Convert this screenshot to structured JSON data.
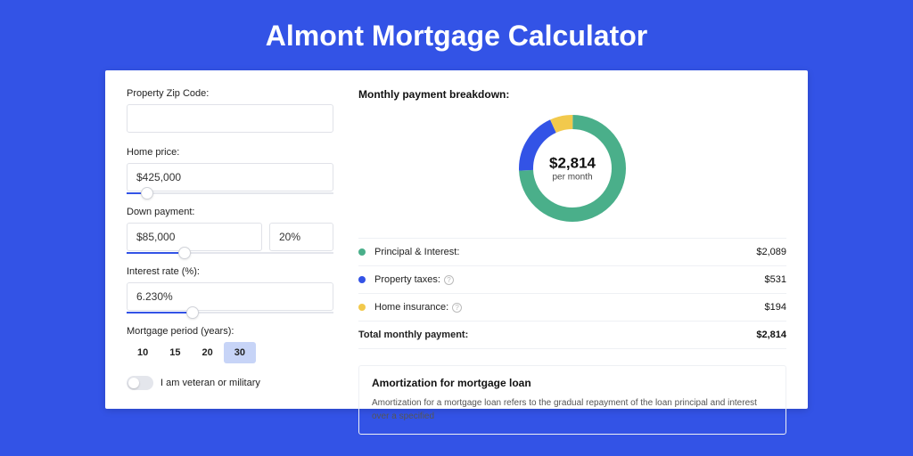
{
  "title": "Almont Mortgage Calculator",
  "colors": {
    "page_bg": "#3353e6",
    "card_bg": "#ffffff",
    "selected_bg": "#c7d4f7",
    "slider_fill": "#3353e6",
    "divider": "#eef0f4"
  },
  "form": {
    "zip": {
      "label": "Property Zip Code:",
      "value": ""
    },
    "price": {
      "label": "Home price:",
      "value": "$425,000",
      "slider_pct": 10
    },
    "down": {
      "label": "Down payment:",
      "value": "$85,000",
      "pct": "20%",
      "slider_pct": 28
    },
    "rate": {
      "label": "Interest rate (%):",
      "value": "6.230%",
      "slider_pct": 32
    },
    "period": {
      "label": "Mortgage period (years):",
      "options": [
        "10",
        "15",
        "20",
        "30"
      ],
      "selected_index": 3
    },
    "veteran_label": "I am veteran or military",
    "veteran_on": false
  },
  "breakdown": {
    "title": "Monthly payment breakdown:",
    "center_value": "$2,814",
    "center_sub": "per month",
    "donut": {
      "size": 120,
      "thickness": 16,
      "slices": [
        {
          "value": 2089,
          "color": "#4aaf8a"
        },
        {
          "value": 531,
          "color": "#3353e6"
        },
        {
          "value": 194,
          "color": "#f2c94c"
        }
      ]
    },
    "rows": [
      {
        "label": "Principal & Interest:",
        "value": "$2,089",
        "color": "#4aaf8a",
        "info": false
      },
      {
        "label": "Property taxes:",
        "value": "$531",
        "color": "#3353e6",
        "info": true
      },
      {
        "label": "Home insurance:",
        "value": "$194",
        "color": "#f2c94c",
        "info": true
      }
    ],
    "total": {
      "label": "Total monthly payment:",
      "value": "$2,814"
    }
  },
  "amortization": {
    "title": "Amortization for mortgage loan",
    "text": "Amortization for a mortgage loan refers to the gradual repayment of the loan principal and interest over a specified"
  }
}
